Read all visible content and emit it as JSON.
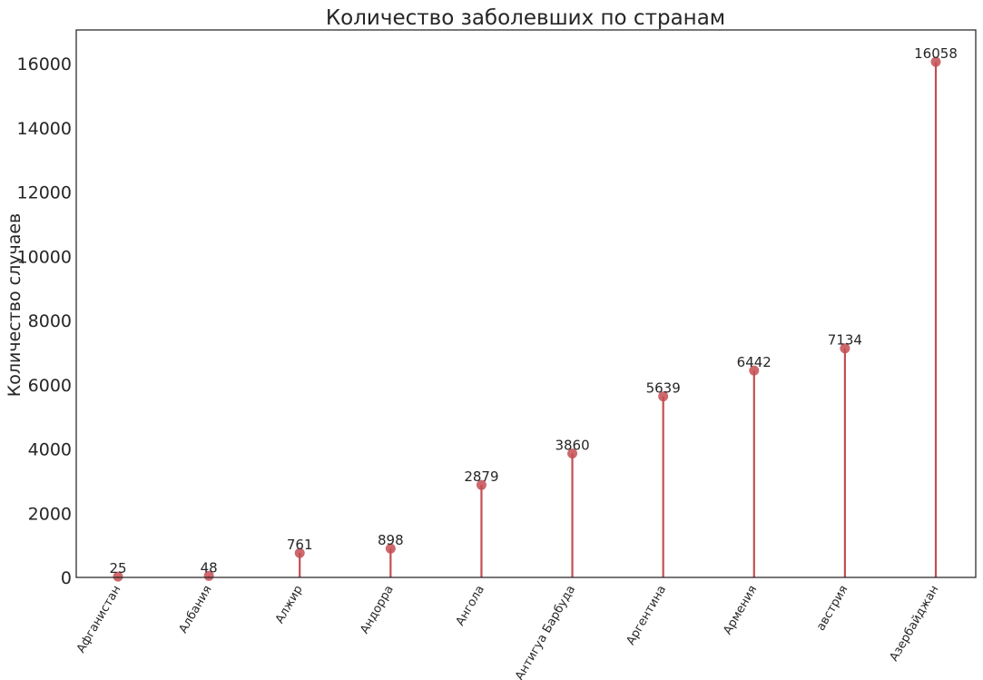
{
  "chart_data": {
    "type": "lollipop",
    "title": "Количество заболевших по странам",
    "xlabel": "",
    "ylabel": "Количество случаев",
    "categories": [
      "Афганистан",
      "Албания",
      "Алжир",
      "Андорра",
      "Ангола",
      "Антигуа Барбуда",
      "Аргентина",
      "Армения",
      "австрия",
      "Азербайджан"
    ],
    "values": [
      25,
      48,
      761,
      898,
      2879,
      3860,
      5639,
      6442,
      7134,
      16058
    ],
    "value_labels": [
      "25",
      "48",
      "761",
      "898",
      "2879",
      "3860",
      "5639",
      "6442",
      "7134",
      "16058"
    ],
    "ylim": [
      0,
      17050
    ],
    "yticks": [
      0,
      2000,
      4000,
      6000,
      8000,
      10000,
      12000,
      14000,
      16000
    ],
    "ytick_labels": [
      "0",
      "2000",
      "4000",
      "6000",
      "8000",
      "10000",
      "12000",
      "14000",
      "16000"
    ],
    "grid": false,
    "legend": "none",
    "colors": {
      "stem": "#c44e52",
      "marker": "#c44e52",
      "axis": "#262626",
      "text": "#262626",
      "background": "#ffffff"
    }
  }
}
